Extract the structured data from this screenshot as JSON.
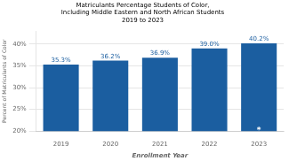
{
  "chart_data": {
    "type": "bar",
    "title": [
      "Matriculants Percentage Students of Color,",
      "Including Middle Eastern and North African Students",
      "2019 to 2023"
    ],
    "categories": [
      "2019",
      "2020",
      "2021",
      "2022",
      "2023"
    ],
    "values": [
      35.3,
      36.2,
      36.9,
      39.0,
      40.2
    ],
    "value_labels": [
      "35.3%",
      "36.2%",
      "36.9%",
      "39.0%",
      "40.2%"
    ],
    "color": "#1B5EA0",
    "xlabel": "Enrollment Year",
    "ylabel": "Percent of Matriculants of Color",
    "ylim": [
      20,
      43
    ],
    "yticks": [
      {
        "value": 20,
        "label": "20%"
      },
      {
        "value": 25,
        "label": "25%"
      },
      {
        "value": 30,
        "label": "30%"
      },
      {
        "value": 35,
        "label": "35%"
      },
      {
        "value": 40,
        "label": "40%"
      }
    ],
    "grid": true,
    "data_labels": true,
    "annotations": [
      {
        "text": "*",
        "x": "2023"
      }
    ]
  }
}
